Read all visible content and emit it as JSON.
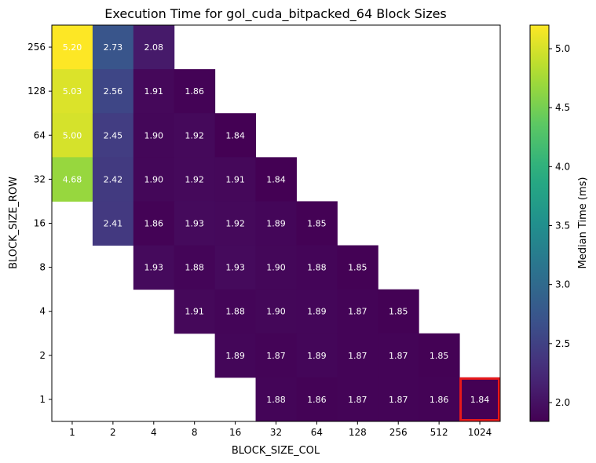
{
  "chart_data": {
    "type": "heatmap",
    "title": "Execution Time for gol_cuda_bitpacked_64 Block Sizes",
    "xlabel": "BLOCK_SIZE_COL",
    "ylabel": "BLOCK_SIZE_ROW",
    "x_categories": [
      "1",
      "2",
      "4",
      "8",
      "16",
      "32",
      "64",
      "128",
      "256",
      "512",
      "1024"
    ],
    "y_categories": [
      "256",
      "128",
      "64",
      "32",
      "16",
      "8",
      "4",
      "2",
      "1"
    ],
    "values": [
      [
        5.2,
        2.73,
        2.08,
        null,
        null,
        null,
        null,
        null,
        null,
        null,
        null
      ],
      [
        5.03,
        2.56,
        1.91,
        1.86,
        null,
        null,
        null,
        null,
        null,
        null,
        null
      ],
      [
        5.0,
        2.45,
        1.9,
        1.92,
        1.84,
        null,
        null,
        null,
        null,
        null,
        null
      ],
      [
        4.68,
        2.42,
        1.9,
        1.92,
        1.91,
        1.84,
        null,
        null,
        null,
        null,
        null
      ],
      [
        null,
        2.41,
        1.86,
        1.93,
        1.92,
        1.89,
        1.85,
        null,
        null,
        null,
        null
      ],
      [
        null,
        null,
        1.93,
        1.88,
        1.93,
        1.9,
        1.88,
        1.85,
        null,
        null,
        null
      ],
      [
        null,
        null,
        null,
        1.91,
        1.88,
        1.9,
        1.89,
        1.87,
        1.85,
        null,
        null
      ],
      [
        null,
        null,
        null,
        null,
        1.89,
        1.87,
        1.89,
        1.87,
        1.87,
        1.85,
        null
      ],
      [
        null,
        null,
        null,
        null,
        null,
        1.88,
        1.86,
        1.87,
        1.87,
        1.86,
        1.84
      ]
    ],
    "highlight": {
      "row": "1",
      "col": "1024",
      "color": "#e8191b"
    },
    "colorbar": {
      "label": "Median Time (ms)",
      "colormap": "viridis",
      "vmin": 1.84,
      "vmax": 5.2,
      "ticks": [
        "2.0",
        "2.5",
        "3.0",
        "3.5",
        "4.0",
        "4.5",
        "5.0"
      ]
    }
  }
}
